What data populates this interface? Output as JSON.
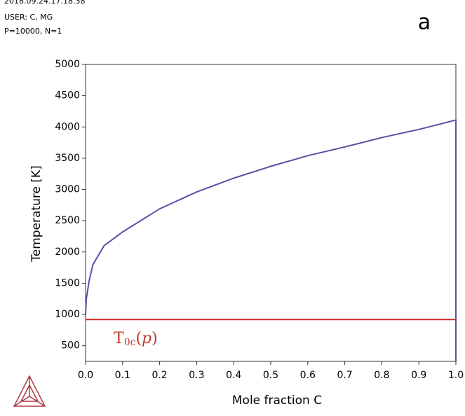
{
  "header": {
    "lines": [
      "2018.09.24.17.18.38",
      "USER: C, MG",
      "P=10000, N=1"
    ],
    "panel_label": "a"
  },
  "chart_data": {
    "type": "line",
    "xlabel": "Mole fraction C",
    "ylabel": "Temperature [K]",
    "xlim": [
      0,
      1
    ],
    "ylim": [
      250,
      5000
    ],
    "xticks": [
      {
        "value": 0,
        "label": "0.0"
      },
      0.1,
      0.2,
      0.3,
      0.4,
      0.5,
      0.6,
      0.7,
      0.8,
      0.9,
      {
        "value": 1,
        "label": "1.0"
      }
    ],
    "yticks": [
      500,
      1000,
      1500,
      2000,
      2500,
      3000,
      3500,
      4000,
      4500,
      5000
    ],
    "series": [
      {
        "color": "#5a4fa8",
        "x": [
          0,
          0.002,
          0.01,
          0.02,
          0.05,
          0.1,
          0.2,
          0.3,
          0.4,
          0.5,
          0.6,
          0.7,
          0.8,
          0.9,
          1,
          1
        ],
        "values": [
          1000,
          1250,
          1550,
          1800,
          2100,
          2320,
          2690,
          2960,
          3180,
          3370,
          3540,
          3680,
          3830,
          3960,
          4110,
          250
        ]
      },
      {
        "color": "#d42a2a",
        "x": [
          0,
          1
        ],
        "values": [
          920,
          920
        ]
      }
    ],
    "annotation": {
      "base": "T",
      "subscript": "0c",
      "open": "(",
      "arg": "p",
      "close": ")",
      "color": "#c0392b"
    }
  }
}
